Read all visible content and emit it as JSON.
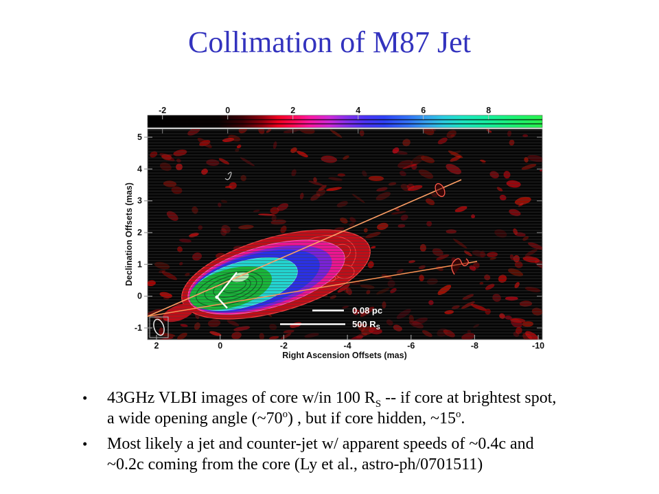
{
  "slide": {
    "title": "Collimation of M87 Jet",
    "title_color": "#3333BE",
    "background": "#ffffff"
  },
  "figure": {
    "colorbar_ticks": [
      "-2",
      "0",
      "2",
      "4",
      "6",
      "8"
    ],
    "yaxis_label": "Declination Offsets (mas)",
    "yaxis_ticks": [
      "5",
      "4",
      "3",
      "2",
      "1",
      "0",
      "-1"
    ],
    "xaxis_label": "Right Ascension Offsets (mas)",
    "xaxis_ticks": [
      "2",
      "0",
      "-2",
      "-4",
      "-6",
      "-8",
      "-10"
    ],
    "scalebar_pc_label": "0.08 pc",
    "scalebar_rs_main": "500 R",
    "scalebar_rs_sub": "S"
  },
  "bullets": {
    "marker": "•",
    "b1": {
      "l1a": "43GHz VLBI images of core w/in 100 R",
      "l1sub": "S",
      "l1b": " -- if core at brightest spot,",
      "l2a": "a wide opening angle (~70",
      "l2sup1": "o",
      "l2b": ") , but if core hidden, ~15",
      "l2sup2": "o",
      "l2c": "."
    },
    "b2": {
      "l1": "Most likely a jet and counter-jet w/ apparent speeds of ~0.4c and",
      "l2": "~0.2c coming from the core (Ly et al., astro-ph/0701511)"
    }
  },
  "chart_data": {
    "type": "heatmap",
    "title": "43 GHz VLBI image of the M87 jet core region",
    "xlabel": "Right Ascension Offsets (mas)",
    "ylabel": "Declination Offsets (mas)",
    "xlim": [
      2,
      -10.3
    ],
    "ylim": [
      -1.4,
      5.3
    ],
    "x_ticks": [
      2,
      0,
      -2,
      -4,
      -6,
      -8,
      -10
    ],
    "y_ticks": [
      5,
      4,
      3,
      2,
      1,
      0,
      -1
    ],
    "colorbar_ticks": [
      -2,
      0,
      2,
      4,
      6,
      8
    ],
    "colorbar_colors": [
      "#000000",
      "#a00010",
      "#ff0030",
      "#ff15a0",
      "#8030e8",
      "#2838f2",
      "#35a0f0",
      "#20e0c8",
      "#22f050"
    ],
    "legend_position": "none",
    "grid": false,
    "features": [
      "elongated contoured jet core: green center, cyan, blue, magenta, red outer contours, centered near RA 0 to -3 mas, Dec 0 to 1.5 mas",
      "white opening-angle wedge at brightest spot near RA -0.3 mas, Dec 0 mas",
      "two orange lines from RA 2 mas Dec -0.6 mas: upper to RA -7.8 mas Dec 3.6 mas, lower to RA -8.3 mas Dec 1.1 mas",
      "red knot contours on each line near their far ends",
      "scale bars 0.08 pc (1 mas) and 500 R_S (2 mas)",
      "beam ellipse in boxed inset at lower-left corner",
      "scattered red noise blobs over black striped background"
    ]
  }
}
